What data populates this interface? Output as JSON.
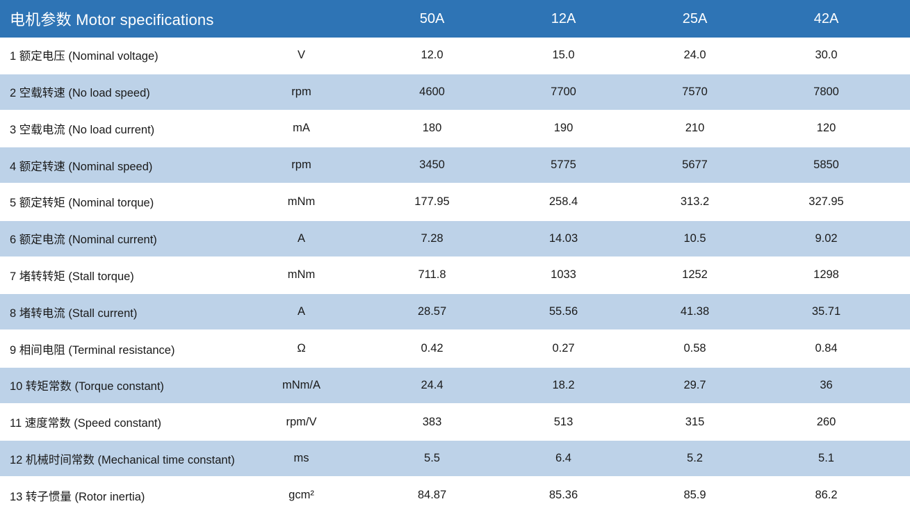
{
  "colors": {
    "header_bg": "#2E74B5",
    "header_text": "#FFFFFF",
    "row_bg": "#FFFFFF",
    "row_alt_bg": "#BDD2E8",
    "body_text": "#1A1A1A"
  },
  "table": {
    "title": "电机参数 Motor specifications",
    "columns": [
      "50A",
      "12A",
      "25A",
      "42A"
    ],
    "rows": [
      {
        "label": "1 额定电压 (Nominal voltage)",
        "unit": "V",
        "values": [
          "12.0",
          "15.0",
          "24.0",
          "30.0"
        ]
      },
      {
        "label": "2 空载转速 (No load speed)",
        "unit": "rpm",
        "values": [
          "4600",
          "7700",
          "7570",
          "7800"
        ]
      },
      {
        "label": "3 空载电流 (No load current)",
        "unit": "mA",
        "values": [
          "180",
          "190",
          "210",
          "120"
        ]
      },
      {
        "label": "4 额定转速 (Nominal speed)",
        "unit": "rpm",
        "values": [
          "3450",
          "5775",
          "5677",
          "5850"
        ]
      },
      {
        "label": "5 额定转矩 (Nominal torque)",
        "unit": "mNm",
        "values": [
          "177.95",
          "258.4",
          "313.2",
          "327.95"
        ]
      },
      {
        "label": "6 额定电流 (Nominal current)",
        "unit": "A",
        "values": [
          "7.28",
          "14.03",
          "10.5",
          "9.02"
        ]
      },
      {
        "label": "7 堵转转矩 (Stall torque)",
        "unit": "mNm",
        "values": [
          "711.8",
          "1033",
          "1252",
          "1298"
        ]
      },
      {
        "label": "8 堵转电流 (Stall current)",
        "unit": "A",
        "values": [
          "28.57",
          "55.56",
          "41.38",
          "35.71"
        ]
      },
      {
        "label": "9 相间电阻 (Terminal resistance)",
        "unit": "Ω",
        "values": [
          "0.42",
          "0.27",
          "0.58",
          "0.84"
        ]
      },
      {
        "label": "10 转矩常数 (Torque constant)",
        "unit": "mNm/A",
        "values": [
          "24.4",
          "18.2",
          "29.7",
          "36"
        ]
      },
      {
        "label": "11 速度常数 (Speed constant)",
        "unit": "rpm/V",
        "values": [
          "383",
          "513",
          "315",
          "260"
        ]
      },
      {
        "label": "12 机械时间常数 (Mechanical time constant)",
        "unit": "ms",
        "values": [
          "5.5",
          "6.4",
          "5.2",
          "5.1"
        ]
      },
      {
        "label": "13 转子惯量 (Rotor inertia)",
        "unit": "gcm²",
        "values": [
          "84.87",
          "85.36",
          "85.9",
          "86.2"
        ]
      }
    ]
  }
}
